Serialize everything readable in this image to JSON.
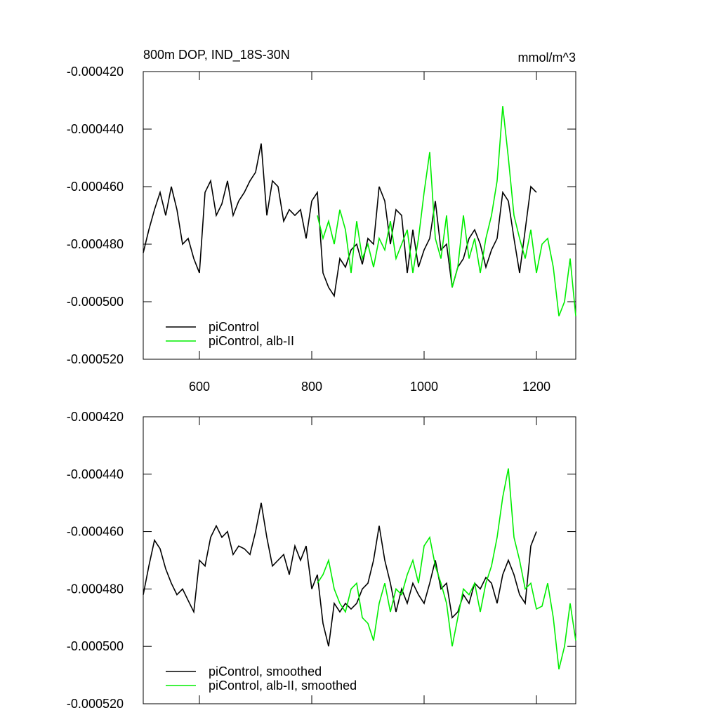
{
  "chart_data": [
    {
      "type": "line",
      "title": "800m DOP, IND_18S-30N",
      "units": "mmol/m^3",
      "x": [
        500,
        510,
        520,
        530,
        540,
        550,
        560,
        570,
        580,
        590,
        600,
        610,
        620,
        630,
        640,
        650,
        660,
        670,
        680,
        690,
        700,
        710,
        720,
        730,
        740,
        750,
        760,
        770,
        780,
        790,
        800,
        810,
        820,
        830,
        840,
        850,
        860,
        870,
        880,
        890,
        900,
        910,
        920,
        930,
        940,
        950,
        960,
        970,
        980,
        990,
        1000,
        1010,
        1020,
        1030,
        1040,
        1050,
        1060,
        1070,
        1080,
        1090,
        1100,
        1110,
        1120,
        1130,
        1140,
        1150,
        1160,
        1170,
        1180,
        1190,
        1200,
        1210,
        1220,
        1230,
        1240,
        1250,
        1260,
        1270
      ],
      "series": [
        {
          "name": "piControl",
          "color": "#000000",
          "values": [
            -0.000483,
            -0.000475,
            -0.000468,
            -0.000462,
            -0.00047,
            -0.00046,
            -0.000468,
            -0.00048,
            -0.000478,
            -0.000485,
            -0.00049,
            -0.000462,
            -0.000458,
            -0.00047,
            -0.000466,
            -0.000458,
            -0.00047,
            -0.000465,
            -0.000462,
            -0.000458,
            -0.000455,
            -0.000445,
            -0.00047,
            -0.000458,
            -0.00046,
            -0.000472,
            -0.000468,
            -0.00047,
            -0.000468,
            -0.000478,
            -0.000465,
            -0.000462,
            -0.00049,
            -0.000495,
            -0.000498,
            -0.000485,
            -0.000488,
            -0.000482,
            -0.00048,
            -0.000487,
            -0.000478,
            -0.00048,
            -0.00046,
            -0.000465,
            -0.00048,
            -0.000468,
            -0.00047,
            -0.00049,
            -0.000475,
            -0.000488,
            -0.000482,
            -0.000478,
            -0.000465,
            -0.000482,
            -0.00048,
            -0.000495,
            -0.000488,
            -0.000485,
            -0.000478,
            -0.000475,
            -0.00048,
            -0.000488,
            -0.000482,
            -0.000478,
            -0.000462,
            -0.000465,
            -0.000478,
            -0.00049,
            -0.000475,
            -0.00046,
            -0.000462,
            null,
            null,
            null,
            null,
            null,
            null,
            null
          ]
        },
        {
          "name": "piControl, alb-II",
          "color": "#00ee00",
          "values": [
            null,
            null,
            null,
            null,
            null,
            null,
            null,
            null,
            null,
            null,
            null,
            null,
            null,
            null,
            null,
            null,
            null,
            null,
            null,
            null,
            null,
            null,
            null,
            null,
            null,
            null,
            null,
            null,
            null,
            null,
            null,
            -0.00047,
            -0.000478,
            -0.000472,
            -0.00048,
            -0.000468,
            -0.000475,
            -0.00049,
            -0.000472,
            -0.000485,
            -0.00048,
            -0.000488,
            -0.000478,
            -0.000482,
            -0.000472,
            -0.000485,
            -0.00048,
            -0.000475,
            -0.00049,
            -0.000478,
            -0.000462,
            -0.000448,
            -0.000478,
            -0.000485,
            -0.00047,
            -0.000495,
            -0.000488,
            -0.00047,
            -0.000485,
            -0.000478,
            -0.00049,
            -0.000478,
            -0.00047,
            -0.000458,
            -0.000432,
            -0.00045,
            -0.00047,
            -0.000478,
            -0.000485,
            -0.000475,
            -0.00049,
            -0.00048,
            -0.000478,
            -0.000488,
            -0.000505,
            -0.0005,
            -0.000485,
            -0.000505
          ]
        }
      ],
      "xlim": [
        500,
        1270
      ],
      "xticks": [
        600,
        800,
        1000,
        1200
      ],
      "show_xtick_labels": true,
      "ylim": [
        -0.00052,
        -0.00042
      ],
      "yticks": [
        {
          "value": -0.00052,
          "label": "-0.000520"
        },
        {
          "value": -0.0005,
          "label": "-0.000500"
        },
        {
          "value": -0.00048,
          "label": "-0.000480"
        },
        {
          "value": -0.00046,
          "label": "-0.000460"
        },
        {
          "value": -0.00044,
          "label": "-0.000440"
        },
        {
          "value": -0.00042,
          "label": "-0.000420"
        }
      ],
      "legend": "lower left"
    },
    {
      "type": "line",
      "x": [
        500,
        510,
        520,
        530,
        540,
        550,
        560,
        570,
        580,
        590,
        600,
        610,
        620,
        630,
        640,
        650,
        660,
        670,
        680,
        690,
        700,
        710,
        720,
        730,
        740,
        750,
        760,
        770,
        780,
        790,
        800,
        810,
        820,
        830,
        840,
        850,
        860,
        870,
        880,
        890,
        900,
        910,
        920,
        930,
        940,
        950,
        960,
        970,
        980,
        990,
        1000,
        1010,
        1020,
        1030,
        1040,
        1050,
        1060,
        1070,
        1080,
        1090,
        1100,
        1110,
        1120,
        1130,
        1140,
        1150,
        1160,
        1170,
        1180,
        1190,
        1200,
        1210,
        1220,
        1230,
        1240,
        1250,
        1260,
        1270
      ],
      "series": [
        {
          "name": "piControl, smoothed",
          "color": "#000000",
          "values": [
            -0.000482,
            -0.000472,
            -0.000463,
            -0.000466,
            -0.000473,
            -0.000478,
            -0.000482,
            -0.00048,
            -0.000484,
            -0.000488,
            -0.00047,
            -0.000472,
            -0.000462,
            -0.000458,
            -0.000462,
            -0.00046,
            -0.000468,
            -0.000465,
            -0.000466,
            -0.000468,
            -0.00046,
            -0.00045,
            -0.000462,
            -0.000472,
            -0.00047,
            -0.000468,
            -0.000475,
            -0.000465,
            -0.00047,
            -0.000465,
            -0.00048,
            -0.000475,
            -0.000492,
            -0.0005,
            -0.000485,
            -0.000488,
            -0.000485,
            -0.000487,
            -0.000485,
            -0.00048,
            -0.000478,
            -0.00047,
            -0.000458,
            -0.00047,
            -0.000478,
            -0.000488,
            -0.00048,
            -0.000485,
            -0.000478,
            -0.000482,
            -0.000485,
            -0.000478,
            -0.00047,
            -0.00048,
            -0.000478,
            -0.00049,
            -0.000488,
            -0.000482,
            -0.000485,
            -0.000478,
            -0.00048,
            -0.000476,
            -0.000478,
            -0.000485,
            -0.000475,
            -0.00047,
            -0.000475,
            -0.000482,
            -0.000485,
            -0.000465,
            -0.00046,
            null,
            null,
            null,
            null,
            null,
            null,
            null
          ]
        },
        {
          "name": "piControl, alb-II, smoothed",
          "color": "#00ee00",
          "values": [
            null,
            null,
            null,
            null,
            null,
            null,
            null,
            null,
            null,
            null,
            null,
            null,
            null,
            null,
            null,
            null,
            null,
            null,
            null,
            null,
            null,
            null,
            null,
            null,
            null,
            null,
            null,
            null,
            null,
            null,
            null,
            -0.000478,
            -0.000475,
            -0.00047,
            -0.00048,
            -0.000485,
            -0.000488,
            -0.00048,
            -0.000478,
            -0.00049,
            -0.000492,
            -0.000498,
            -0.000485,
            -0.000478,
            -0.000488,
            -0.00048,
            -0.000482,
            -0.000475,
            -0.00047,
            -0.000478,
            -0.000465,
            -0.000462,
            -0.000472,
            -0.000478,
            -0.000485,
            -0.0005,
            -0.00049,
            -0.00048,
            -0.000482,
            -0.000478,
            -0.000488,
            -0.000478,
            -0.000472,
            -0.000462,
            -0.000448,
            -0.000438,
            -0.000462,
            -0.00047,
            -0.00048,
            -0.000478,
            -0.000487,
            -0.000486,
            -0.000478,
            -0.00049,
            -0.000508,
            -0.0005,
            -0.000485,
            -0.000498
          ]
        }
      ],
      "xlim": [
        500,
        1270
      ],
      "xticks": [
        600,
        800,
        1000,
        1200
      ],
      "show_xtick_labels": false,
      "ylim": [
        -0.00052,
        -0.00042
      ],
      "yticks": [
        {
          "value": -0.00052,
          "label": "-0.000520"
        },
        {
          "value": -0.0005,
          "label": "-0.000500"
        },
        {
          "value": -0.00048,
          "label": "-0.000480"
        },
        {
          "value": -0.00046,
          "label": "-0.000460"
        },
        {
          "value": -0.00044,
          "label": "-0.000440"
        },
        {
          "value": -0.00042,
          "label": "-0.000420"
        }
      ],
      "legend": "lower left"
    }
  ]
}
